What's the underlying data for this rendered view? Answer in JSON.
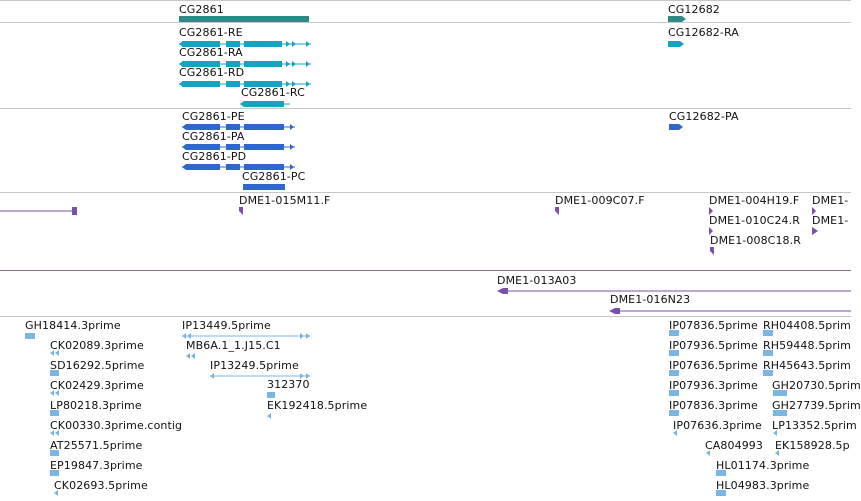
{
  "colors": {
    "gene": "#2f8a87",
    "transcript": "#16a3c0",
    "protein": "#2f68c7",
    "clone": "#7a4fb0",
    "clone_line": "#8a6aa0",
    "est": "#7ab6e4",
    "divider": "#c7c7c7"
  },
  "gene_track": {
    "labels": [
      "CG2861",
      "CG12682"
    ]
  },
  "transcript_track": {
    "labels": [
      "CG2861-RE",
      "CG2861-RA",
      "CG2861-RD",
      "CG2861-RC",
      "CG12682-RA"
    ]
  },
  "protein_track": {
    "labels": [
      "CG2861-PE",
      "CG2861-PA",
      "CG2861-PD",
      "CG2861-PC",
      "CG12682-PA"
    ]
  },
  "clone_track": {
    "labels": [
      "DME1-015M11.F",
      "DME1-009C07.F",
      "DME1-004H19.F",
      "DME1-",
      "DME1-010C24.R",
      "DME1-",
      "DME1-008C18.R"
    ]
  },
  "bac_track": {
    "labels": [
      "DME1-013A03",
      "DME1-016N23"
    ]
  },
  "est_track": {
    "labels": [
      "GH18414.3prime",
      "CK02089.3prime",
      "SD16292.5prime",
      "CK02429.3prime",
      "LP80218.3prime",
      "CK00330.3prime.contig",
      "AT25571.5prime",
      "EP19847.3prime",
      "CK02693.5prime",
      "IP13449.5prime",
      "MB6A.1_1.J15.C1",
      "IP13249.5prime",
      "312370",
      "EK192418.5prime",
      "IP07836.5prime",
      "IP07936.5prime",
      "IP07636.5prime",
      "IP07936.3prime",
      "IP07836.3prime",
      "IP07636.3prime",
      "CA804993",
      "HL01174.3prime",
      "HL04983.3prime",
      "RH04408.5prim",
      "RH59448.5prim",
      "RH45643.5prim",
      "GH20730.5prim",
      "GH27739.5prim",
      "LP13352.5prim",
      "EK158928.5p"
    ]
  }
}
